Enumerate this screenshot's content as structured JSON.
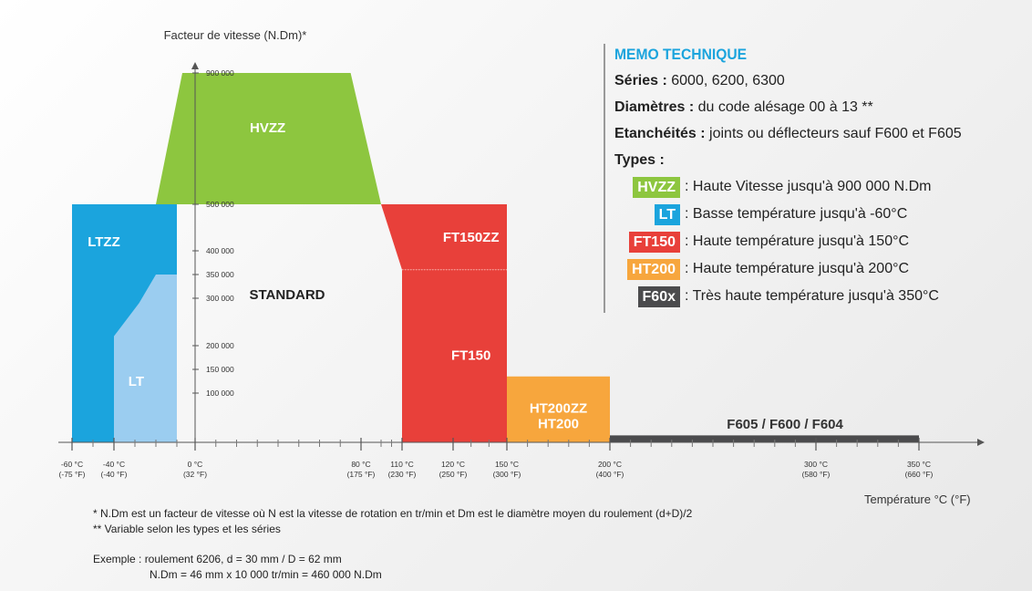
{
  "chart_data": {
    "type": "area",
    "ylabel": "Facteur de vitesse  (N.Dm)*",
    "xlabel": "Température °C (°F)",
    "x_ticks": [
      {
        "c": -60,
        "label": "-60 °C",
        "label2": "(-75 °F)"
      },
      {
        "c": -40,
        "label": "-40 °C",
        "label2": "(-40 °F)"
      },
      {
        "c": 0,
        "label": "0 °C",
        "label2": "(32 °F)"
      },
      {
        "c": 80,
        "label": "80 °C",
        "label2": "(175 °F)"
      },
      {
        "c": 110,
        "label": "110 °C",
        "label2": "(230 °F)"
      },
      {
        "c": 120,
        "label": "120 °C",
        "label2": "(250 °F)"
      },
      {
        "c": 150,
        "label": "150 °C",
        "label2": "(300 °F)"
      },
      {
        "c": 200,
        "label": "200 °C",
        "label2": "(400 °F)"
      },
      {
        "c": 300,
        "label": "300 °C",
        "label2": "(580 °F)"
      },
      {
        "c": 350,
        "label": "350 °C",
        "label2": "(660 °F)"
      }
    ],
    "y_ticks": [
      {
        "v": 100000,
        "label": "100 000"
      },
      {
        "v": 150000,
        "label": "150 000"
      },
      {
        "v": 200000,
        "label": "200 000"
      },
      {
        "v": 300000,
        "label": "300 000"
      },
      {
        "v": 350000,
        "label": "350 000"
      },
      {
        "v": 400000,
        "label": "400 000"
      },
      {
        "v": 500000,
        "label": "500 000"
      },
      {
        "v": 900000,
        "label": "900 000"
      }
    ],
    "zones": [
      {
        "name": "LTZZ",
        "label": "LTZZ",
        "color": "#1ba4dd",
        "points": [
          [
            -60,
            0
          ],
          [
            -60,
            500000
          ],
          [
            -10,
            500000
          ],
          [
            -10,
            0
          ]
        ]
      },
      {
        "name": "LT",
        "label": "LT",
        "color": "#9bcdf0",
        "points": [
          [
            -40,
            0
          ],
          [
            -40,
            220000
          ],
          [
            -28,
            290000
          ],
          [
            -20,
            350000
          ],
          [
            -10,
            350000
          ],
          [
            -10,
            0
          ]
        ]
      },
      {
        "name": "HVZZ",
        "label": "HVZZ",
        "color": "#8dc63f",
        "points": [
          [
            -20,
            500000
          ],
          [
            -7,
            900000
          ],
          [
            75,
            900000
          ],
          [
            90,
            500000
          ]
        ]
      },
      {
        "name": "FT150ZZ",
        "label": "FT150ZZ",
        "color": "#e8403a",
        "points": [
          [
            90,
            500000
          ],
          [
            110,
            360000
          ],
          [
            150,
            360000
          ],
          [
            150,
            500000
          ]
        ]
      },
      {
        "name": "FT150",
        "label": "FT150",
        "color": "#e8403a",
        "points": [
          [
            110,
            0
          ],
          [
            110,
            360000
          ],
          [
            150,
            360000
          ],
          [
            150,
            0
          ]
        ]
      },
      {
        "name": "HT200ZZ / HT200",
        "label": "HT200ZZ",
        "label2": "HT200",
        "color": "#f7a63d",
        "points": [
          [
            150,
            0
          ],
          [
            150,
            135000
          ],
          [
            200,
            135000
          ],
          [
            200,
            0
          ]
        ]
      },
      {
        "name": "F605 / F600 / F604",
        "label": "F605 / F600 / F604",
        "color": "#4b4b4d",
        "points": [
          [
            200,
            0
          ],
          [
            200,
            14000
          ],
          [
            350,
            14000
          ],
          [
            350,
            0
          ]
        ]
      }
    ],
    "annotations": [
      {
        "text": "STANDARD",
        "x": 40,
        "y": 260000
      }
    ]
  },
  "memo": {
    "title": "MEMO TECHNIQUE",
    "series_label": "Séries :",
    "series_value": " 6000, 6200, 6300",
    "diam_label": "Diamètres :",
    "diam_value": " du code alésage 00 à 13 **",
    "etan_label": "Etanchéités :",
    "etan_value": " joints ou déflecteurs sauf F600 et F605",
    "types_title": "Types :",
    "types": [
      {
        "badge": "HVZZ",
        "color": "#8dc63f",
        "desc": ": Haute Vitesse jusqu'à 900 000 N.Dm"
      },
      {
        "badge": "LT",
        "color": "#1ba4dd",
        "desc": ": Basse température jusqu'à -60°C"
      },
      {
        "badge": "FT150",
        "color": "#e8403a",
        "desc": ": Haute température jusqu'à 150°C"
      },
      {
        "badge": "HT200",
        "color": "#f7a63d",
        "desc": ": Haute température jusqu'à 200°C"
      },
      {
        "badge": "F60x",
        "color": "#4b4b4d",
        "desc": ": Très haute température jusqu'à 350°C"
      }
    ]
  },
  "notes": {
    "n1": "* N.Dm est un facteur de vitesse où N est la vitesse de rotation en tr/min et Dm est le diamètre moyen du roulement (d+D)/2",
    "n2": "** Variable selon les types et les séries",
    "ex1": "Exemple : roulement 6206, d = 30 mm / D = 62 mm",
    "ex2": "N.Dm = 46 mm x 10 000 tr/min = 460 000 N.Dm"
  }
}
